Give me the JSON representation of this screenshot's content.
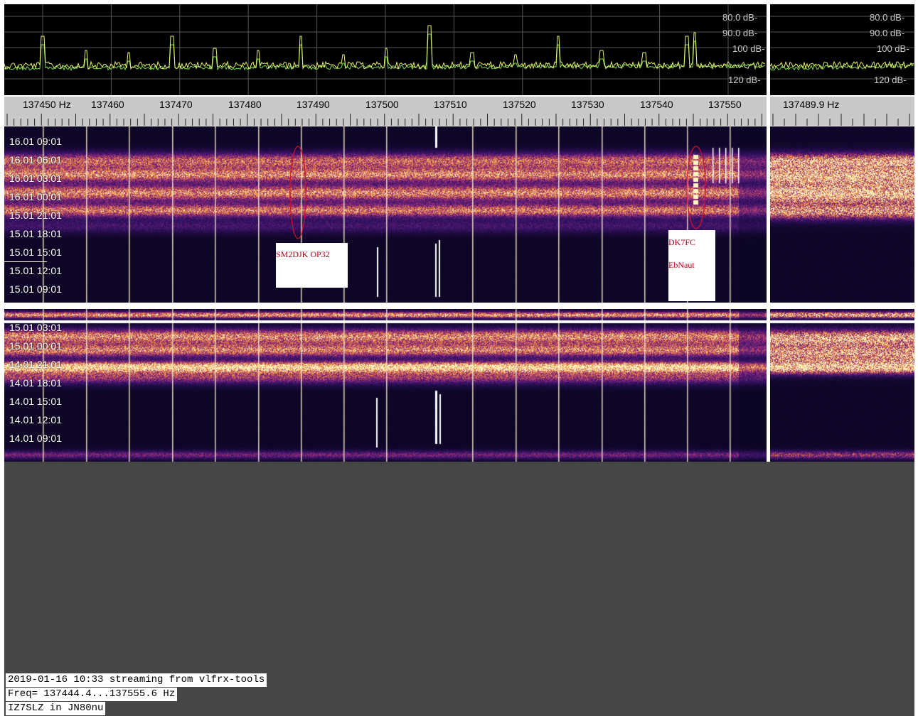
{
  "spectrum": {
    "db_labels_main": [
      "80.0 dB-",
      "90.0 dB-",
      "100 dB-",
      "120 dB-"
    ],
    "db_labels_side": [
      "80.0 dB-",
      "90.0 dB-",
      "100 dB-",
      "120 dB-"
    ]
  },
  "freq_scale": {
    "labels": [
      "137450 Hz",
      "137460",
      "137470",
      "137480",
      "137490",
      "137500",
      "137510",
      "137520",
      "137530",
      "137540",
      "137550"
    ],
    "side_label": "137489.9 Hz"
  },
  "waterfall_top": {
    "times": [
      "16.01 09:01",
      "16.01 06:01",
      "16.01 03:01",
      "16.01 00:01",
      "15.01 21:01",
      "15.01 18:01",
      "15.01 15:01",
      "15.01 12:01",
      "15.01 09:01"
    ]
  },
  "waterfall_bottom": {
    "times": [
      "15.01 03:01",
      "15.01 00:01",
      "14.01 21:01",
      "14.01 18:01",
      "14.01 15:01",
      "14.01 12:01",
      "14.01 09:01"
    ]
  },
  "annotations": {
    "left": "SM2DJK OP32",
    "right_line1": "DK7FC",
    "right_line2": "EbNaut"
  },
  "status": {
    "line1": "2019-01-16 10:33 streaming from vlfrx-tools",
    "line2": "Freq= 137444.4...137555.6 Hz",
    "line3": "IZ7SLZ in JN80nu"
  },
  "colors": {
    "spectrum_trace": "#7adf4a",
    "spectrum_peak": "#e8f070",
    "waterfall_low": "#0a0528",
    "waterfall_mid": "#6a1a9a",
    "waterfall_high": "#ffcc44",
    "annotation_red": "#b00018",
    "background_gray": "#464646"
  }
}
